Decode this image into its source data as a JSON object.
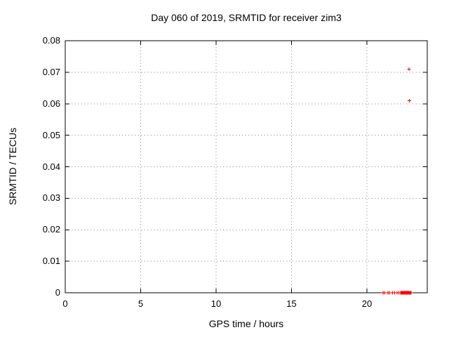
{
  "chart_data": {
    "type": "scatter",
    "title": "Day 060 of 2019, SRMTID for receiver zim3",
    "xlabel": "GPS time / hours",
    "ylabel": "SRMTID / TECUs",
    "xlim": [
      0,
      24
    ],
    "ylim": [
      0,
      0.08
    ],
    "xticks": [
      0,
      5,
      10,
      15,
      20
    ],
    "x_tick_labels": [
      "0",
      "5",
      "10",
      "15",
      "20"
    ],
    "yticks": [
      0,
      0.01,
      0.02,
      0.03,
      0.04,
      0.05,
      0.06,
      0.07,
      0.08
    ],
    "y_tick_labels": [
      "0",
      "0.01",
      "0.02",
      "0.03",
      "0.04",
      "0.05",
      "0.06",
      "0.07",
      "0.08"
    ],
    "grid": true,
    "grid_style": "dotted",
    "legend": "none",
    "marker": "plus",
    "marker_size": 5,
    "marker_color": "#ff0000",
    "axis_color": "#000000",
    "grid_color": "#a6a6a6",
    "series": [
      {
        "name": "SRMTID",
        "points": [
          [
            22.8,
            0.071
          ],
          [
            22.81,
            0.061
          ],
          [
            21.07,
            0
          ],
          [
            21.16,
            0
          ],
          [
            21.4,
            0
          ],
          [
            21.49,
            0
          ],
          [
            21.7,
            0
          ],
          [
            21.84,
            0
          ],
          [
            22.0,
            0
          ],
          [
            22.12,
            0
          ],
          [
            22.23,
            0
          ],
          [
            22.26,
            0
          ],
          [
            22.29,
            0
          ],
          [
            22.32,
            0
          ],
          [
            22.35,
            0
          ],
          [
            22.38,
            0
          ],
          [
            22.41,
            0
          ],
          [
            22.44,
            0
          ],
          [
            22.47,
            0
          ],
          [
            22.5,
            0
          ],
          [
            22.53,
            0
          ],
          [
            22.56,
            0
          ],
          [
            22.59,
            0
          ],
          [
            22.62,
            0
          ],
          [
            22.65,
            0
          ],
          [
            22.68,
            0
          ],
          [
            22.71,
            0
          ],
          [
            22.74,
            0
          ],
          [
            22.77,
            0
          ],
          [
            22.8,
            0
          ],
          [
            22.83,
            0
          ],
          [
            22.86,
            0
          ],
          [
            22.89,
            0
          ],
          [
            22.93,
            0
          ]
        ]
      }
    ]
  }
}
